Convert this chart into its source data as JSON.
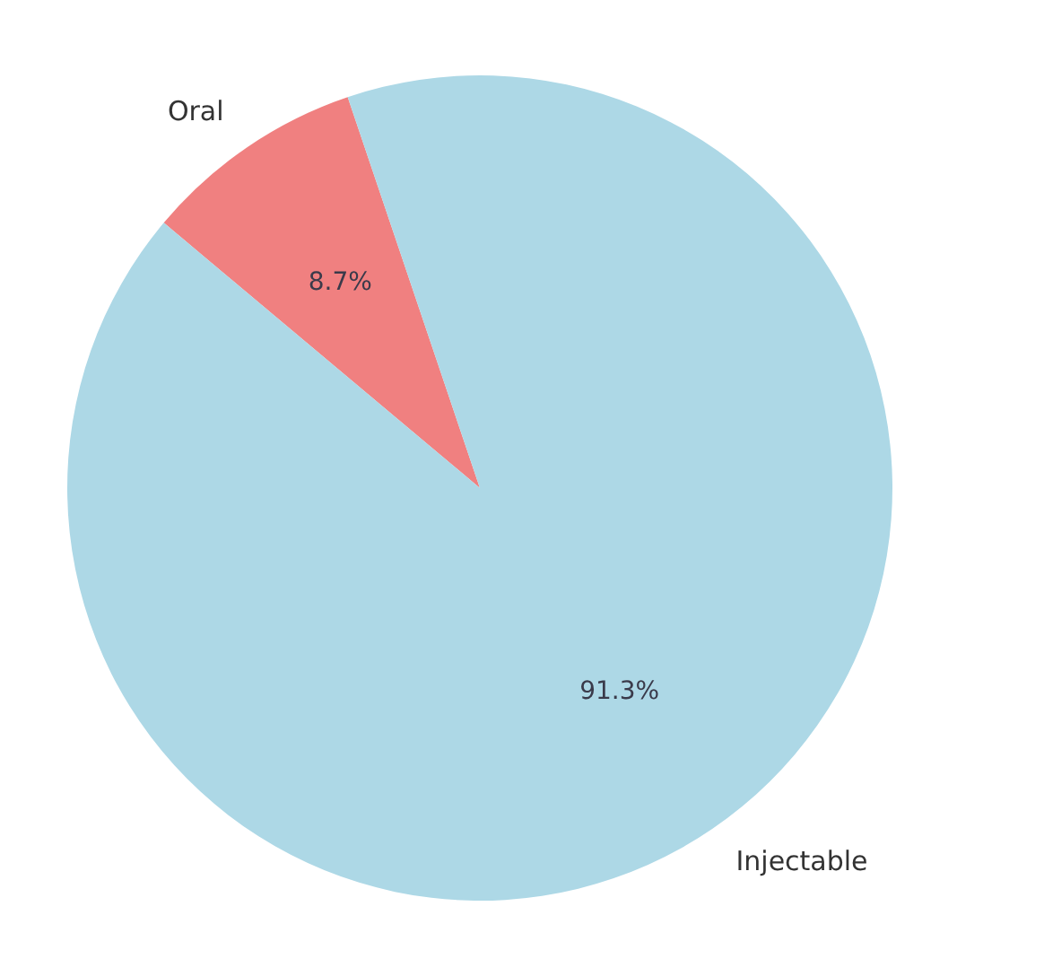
{
  "chart_data": {
    "type": "pie",
    "categories": [
      "Oral",
      "Injectable"
    ],
    "values": [
      8.7,
      91.3
    ],
    "colors": [
      "#f08080",
      "#add8e6"
    ],
    "value_labels": [
      "8.7%",
      "91.3%"
    ],
    "legend": false
  }
}
